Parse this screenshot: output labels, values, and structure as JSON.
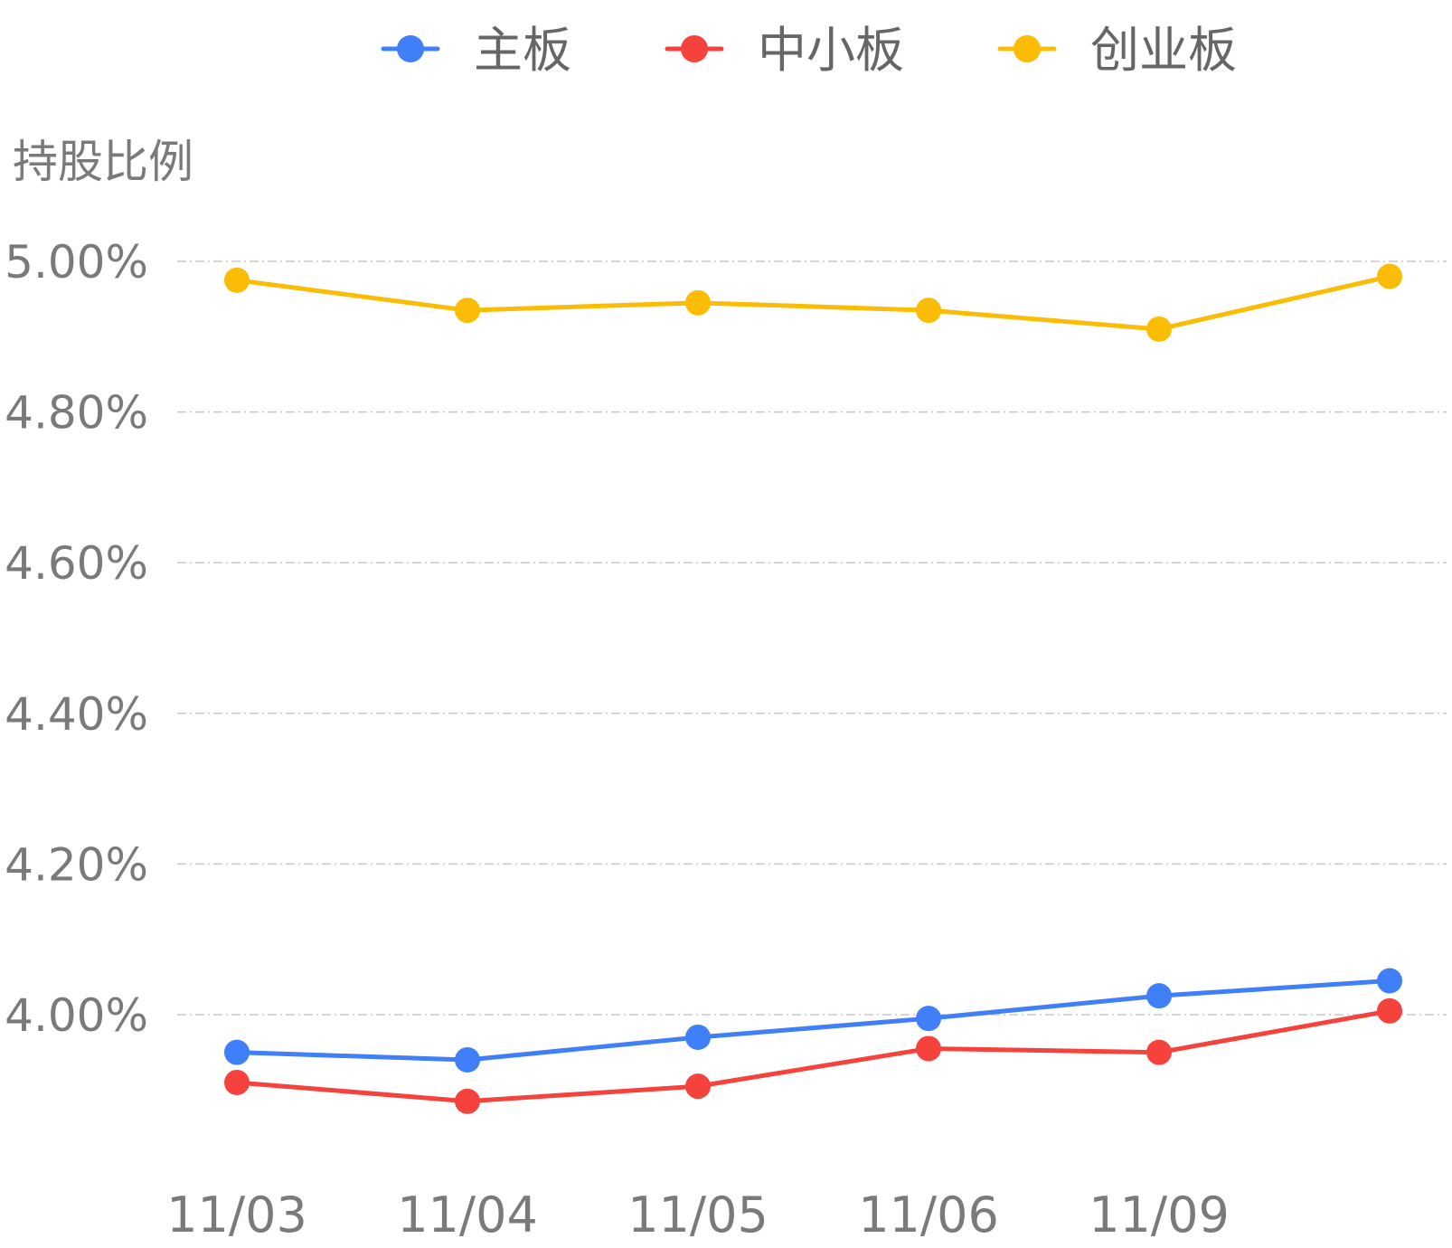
{
  "chart_data": {
    "type": "line",
    "ylabel": "持股比例",
    "ylim": [
      3.84,
      5.0
    ],
    "yticks": [
      "5.00%",
      "4.80%",
      "4.60%",
      "4.40%",
      "4.20%",
      "4.00%"
    ],
    "ytick_values": [
      5.0,
      4.8,
      4.6,
      4.4,
      4.2,
      4.0
    ],
    "x_tick_labels": [
      "11/03",
      "11/04",
      "11/05",
      "11/06",
      "11/09"
    ],
    "point_count": 6,
    "grid": true,
    "legend_position": "top-center",
    "series": [
      {
        "name": "主板",
        "color": "#3f7ff7",
        "values": [
          3.95,
          3.94,
          3.97,
          3.995,
          4.025,
          4.045
        ]
      },
      {
        "name": "中小板",
        "color": "#f5423c",
        "values": [
          3.91,
          3.885,
          3.905,
          3.955,
          3.95,
          4.005
        ]
      },
      {
        "name": "创业板",
        "color": "#fbbc05",
        "values": [
          4.975,
          4.935,
          4.945,
          4.935,
          4.91,
          4.98
        ]
      }
    ]
  }
}
